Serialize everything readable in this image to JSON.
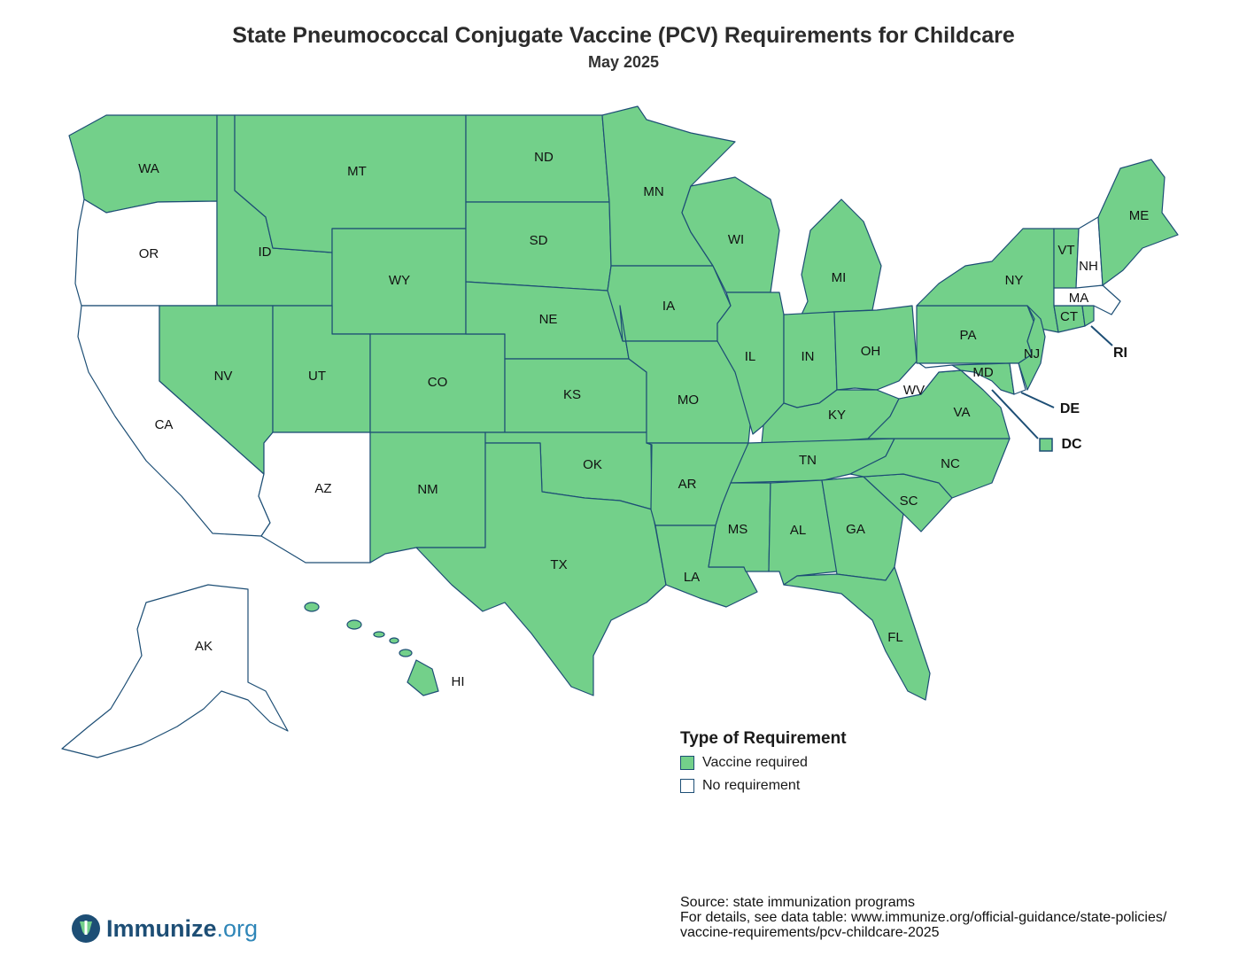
{
  "title": "State Pneumococcal Conjugate Vaccine (PCV) Requirements for Childcare",
  "subtitle": "May 2025",
  "colors": {
    "vaccine_required": "#73d08a",
    "no_requirement": "#ffffff",
    "border": "#1d4e75"
  },
  "states": {
    "WA": {
      "label": "WA",
      "requirement": "Vaccine required"
    },
    "OR": {
      "label": "OR",
      "requirement": "No requirement"
    },
    "CA": {
      "label": "CA",
      "requirement": "No requirement"
    },
    "ID": {
      "label": "ID",
      "requirement": "Vaccine required"
    },
    "NV": {
      "label": "NV",
      "requirement": "Vaccine required"
    },
    "MT": {
      "label": "MT",
      "requirement": "Vaccine required"
    },
    "WY": {
      "label": "WY",
      "requirement": "Vaccine required"
    },
    "UT": {
      "label": "UT",
      "requirement": "Vaccine required"
    },
    "AZ": {
      "label": "AZ",
      "requirement": "No requirement"
    },
    "CO": {
      "label": "CO",
      "requirement": "Vaccine required"
    },
    "NM": {
      "label": "NM",
      "requirement": "Vaccine required"
    },
    "ND": {
      "label": "ND",
      "requirement": "Vaccine required"
    },
    "SD": {
      "label": "SD",
      "requirement": "Vaccine required"
    },
    "NE": {
      "label": "NE",
      "requirement": "Vaccine required"
    },
    "KS": {
      "label": "KS",
      "requirement": "Vaccine required"
    },
    "OK": {
      "label": "OK",
      "requirement": "Vaccine required"
    },
    "TX": {
      "label": "TX",
      "requirement": "Vaccine required"
    },
    "MN": {
      "label": "MN",
      "requirement": "Vaccine required"
    },
    "IA": {
      "label": "IA",
      "requirement": "Vaccine required"
    },
    "MO": {
      "label": "MO",
      "requirement": "Vaccine required"
    },
    "AR": {
      "label": "AR",
      "requirement": "Vaccine required"
    },
    "LA": {
      "label": "LA",
      "requirement": "Vaccine required"
    },
    "WI": {
      "label": "WI",
      "requirement": "Vaccine required"
    },
    "IL": {
      "label": "IL",
      "requirement": "Vaccine required"
    },
    "MI": {
      "label": "MI",
      "requirement": "Vaccine required"
    },
    "IN": {
      "label": "IN",
      "requirement": "Vaccine required"
    },
    "OH": {
      "label": "OH",
      "requirement": "Vaccine required"
    },
    "KY": {
      "label": "KY",
      "requirement": "Vaccine required"
    },
    "TN": {
      "label": "TN",
      "requirement": "Vaccine required"
    },
    "MS": {
      "label": "MS",
      "requirement": "Vaccine required"
    },
    "AL": {
      "label": "AL",
      "requirement": "Vaccine required"
    },
    "GA": {
      "label": "GA",
      "requirement": "Vaccine required"
    },
    "FL": {
      "label": "FL",
      "requirement": "Vaccine required"
    },
    "SC": {
      "label": "SC",
      "requirement": "Vaccine required"
    },
    "NC": {
      "label": "NC",
      "requirement": "Vaccine required"
    },
    "VA": {
      "label": "VA",
      "requirement": "Vaccine required"
    },
    "WV": {
      "label": "WV",
      "requirement": "No requirement"
    },
    "PA": {
      "label": "PA",
      "requirement": "Vaccine required"
    },
    "NY": {
      "label": "NY",
      "requirement": "Vaccine required"
    },
    "NJ": {
      "label": "NJ",
      "requirement": "Vaccine required"
    },
    "MD": {
      "label": "MD",
      "requirement": "Vaccine required"
    },
    "DE": {
      "label": "DE",
      "requirement": "No requirement"
    },
    "DC": {
      "label": "DC",
      "requirement": "Vaccine required"
    },
    "CT": {
      "label": "CT",
      "requirement": "Vaccine required"
    },
    "RI": {
      "label": "RI",
      "requirement": "Vaccine required"
    },
    "MA": {
      "label": "MA",
      "requirement": "No requirement"
    },
    "VT": {
      "label": "VT",
      "requirement": "Vaccine required"
    },
    "NH": {
      "label": "NH",
      "requirement": "No requirement"
    },
    "ME": {
      "label": "ME",
      "requirement": "Vaccine required"
    },
    "AK": {
      "label": "AK",
      "requirement": "No requirement"
    },
    "HI": {
      "label": "HI",
      "requirement": "Vaccine required"
    }
  },
  "legend": {
    "title": "Type of Requirement",
    "items": [
      {
        "label": "Vaccine required"
      },
      {
        "label": "No requirement"
      }
    ]
  },
  "source": {
    "line1": "Source: state immunization programs",
    "line2": "For details, see data table: www.immunize.org/official-guidance/state-policies/",
    "line3": "vaccine-requirements/pcv-childcare-2025"
  },
  "logo": {
    "brand": "Immunize",
    "suffix": ".org"
  }
}
